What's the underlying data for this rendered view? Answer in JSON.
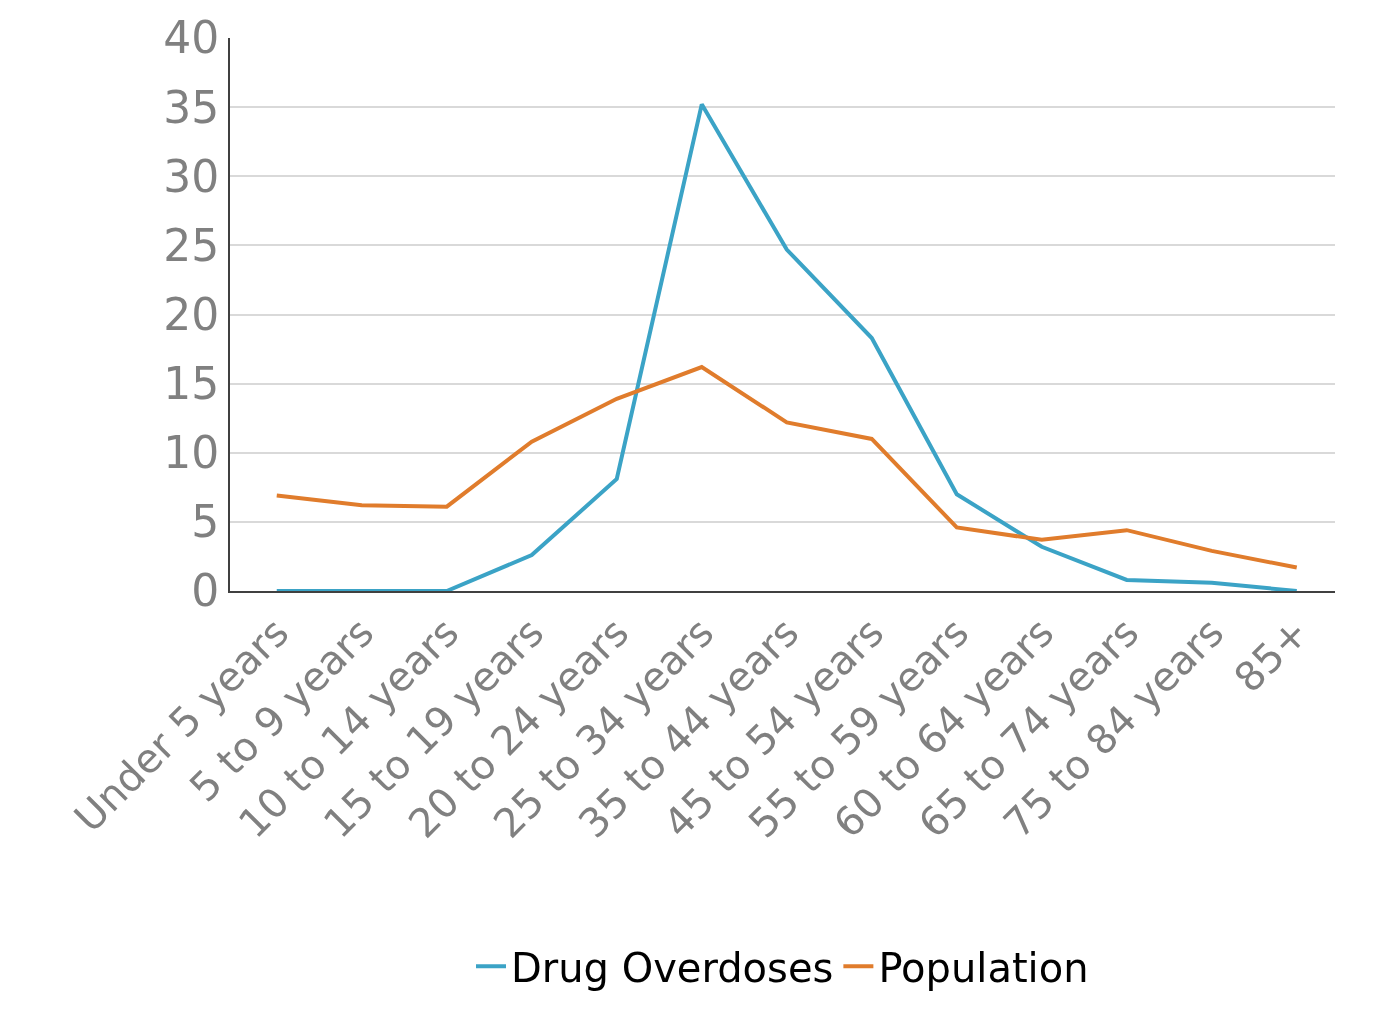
{
  "chart_data": {
    "type": "line",
    "categories": [
      "Under 5 years",
      "5 to 9 years",
      "10 to 14 years",
      "15 to 19 years",
      "20 to 24 years",
      "25 to 34 years",
      "35 to 44 years",
      "45 to 54 years",
      "55 to 59 years",
      "60 to 64 years",
      "65 to 74 years",
      "75 to 84 years",
      "85+"
    ],
    "series": [
      {
        "name": "Drug Overdoses",
        "color": "#3ba3c6",
        "values": [
          0,
          0,
          0,
          2.6,
          8.1,
          35.2,
          24.7,
          18.3,
          7.0,
          3.2,
          0.8,
          0.6,
          0
        ]
      },
      {
        "name": "Population",
        "color": "#e07c2c",
        "values": [
          6.9,
          6.2,
          6.1,
          10.8,
          13.9,
          16.2,
          12.2,
          11.0,
          4.6,
          3.7,
          4.4,
          2.9,
          1.7
        ]
      }
    ],
    "ylim": [
      0,
      40
    ],
    "yticks": [
      0,
      5,
      10,
      15,
      20,
      25,
      30,
      35,
      40
    ],
    "grid": "y",
    "legend": "bottom",
    "marker": "none",
    "line_style": "solid"
  }
}
